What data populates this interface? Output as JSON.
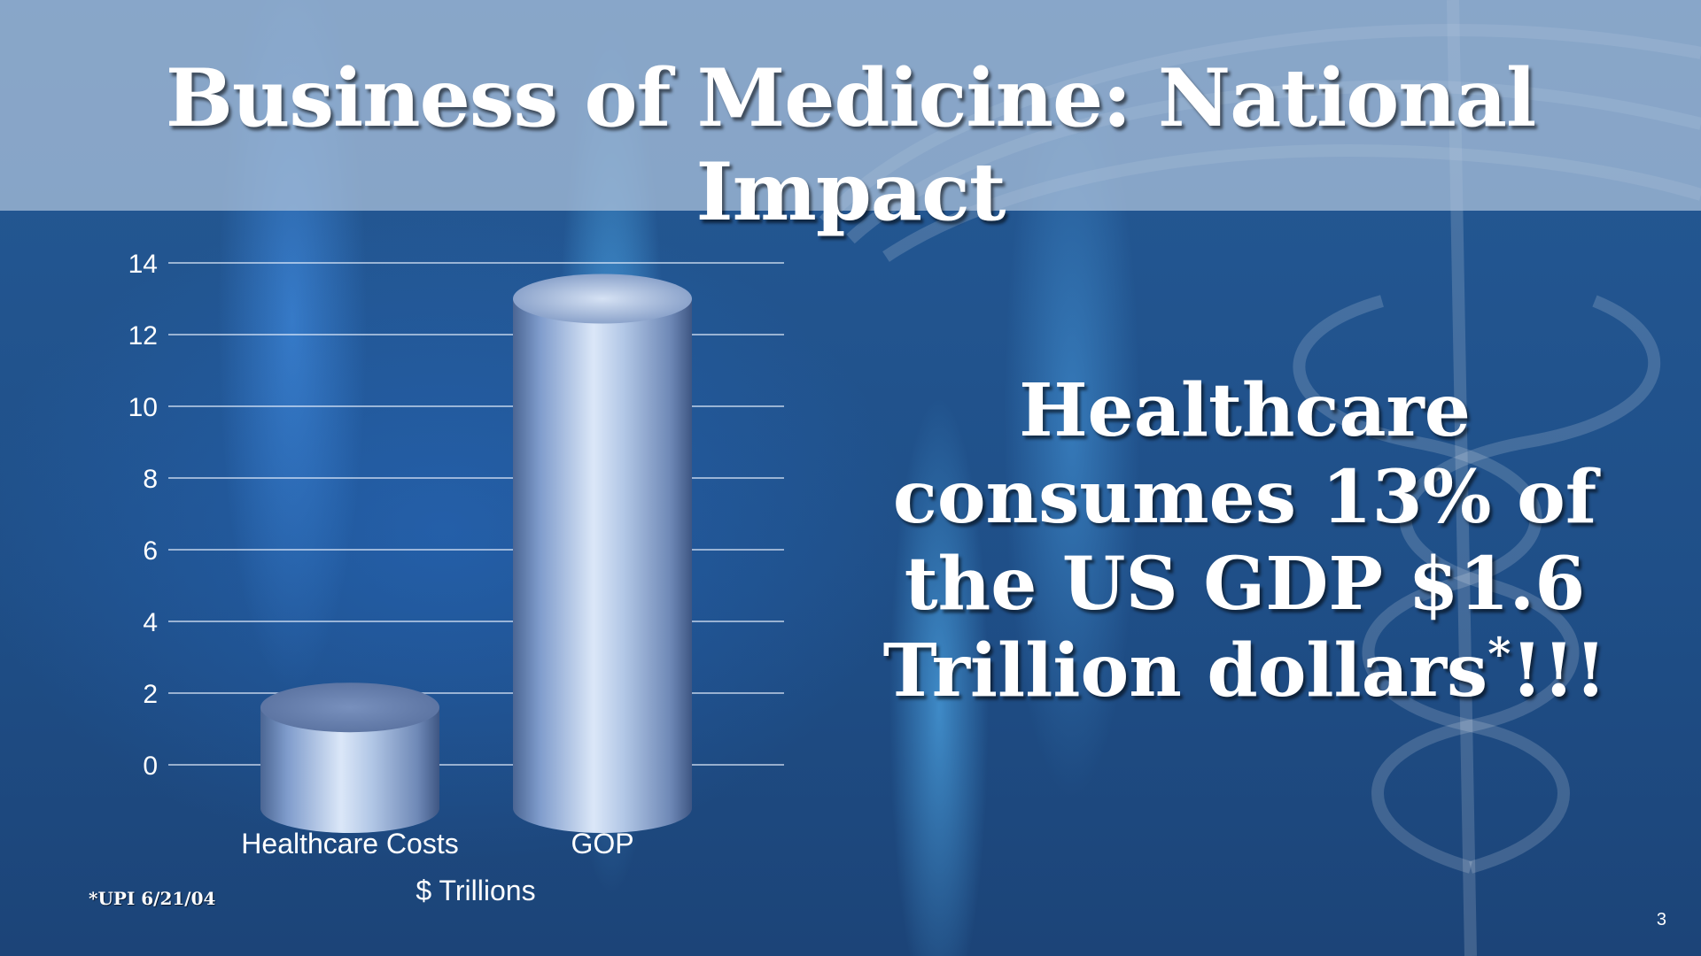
{
  "slide": {
    "title": "Business of Medicine: National Impact",
    "callout": {
      "lines": [
        "Healthcare",
        "consumes 13% of",
        "the US GDP $1.6"
      ],
      "last_line_text": "Trillion dollars",
      "last_line_marker": "*",
      "last_line_suffix": "!!!"
    },
    "source_note": "*UPI 6/21/04",
    "page_number": "3"
  },
  "colors": {
    "background": "#1d4f8c",
    "title_band": "#afc3dc",
    "text": "#ffffff",
    "bar_fill": "#9bb8e0"
  },
  "chart_data": {
    "type": "bar",
    "style": "3d-cylinder",
    "categories": [
      "Healthcare Costs",
      "GOP"
    ],
    "series": [
      {
        "values": [
          1.6,
          13
        ]
      }
    ],
    "xlabel": "$ Trillions",
    "ylabel": "",
    "ylim": [
      0,
      14
    ],
    "yticks": [
      0,
      2,
      4,
      6,
      8,
      10,
      12,
      14
    ],
    "grid": true,
    "legend": "none"
  }
}
